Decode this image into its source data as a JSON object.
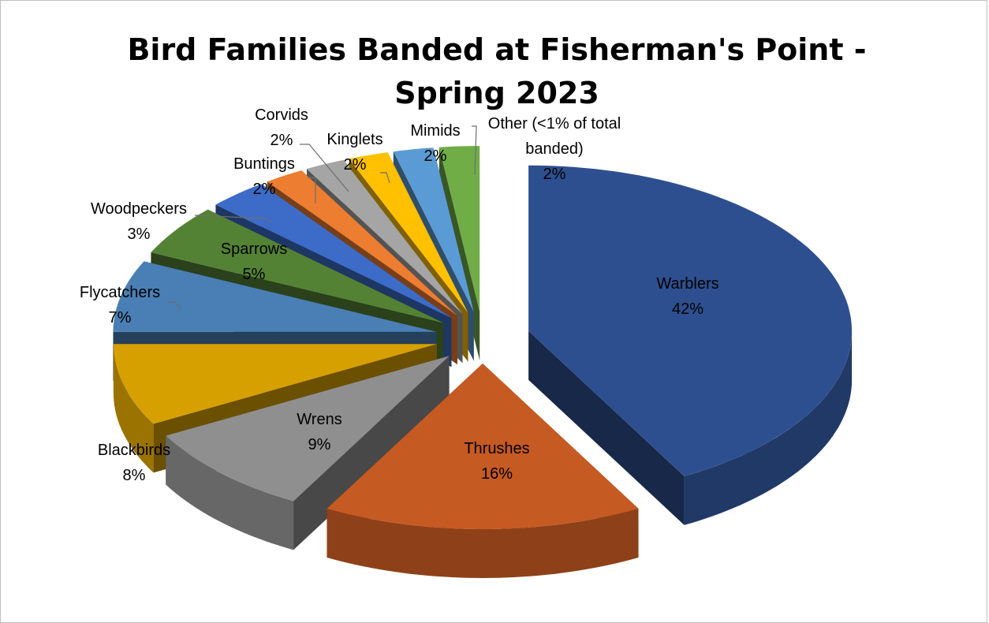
{
  "chart_data": {
    "type": "pie",
    "variant": "3d-exploded",
    "title_line1": "Bird Families Banded at Fisherman's Point -",
    "title_line2": "Spring 2023",
    "slices": [
      {
        "name": "Warblers",
        "value": 42,
        "label": "42%",
        "color": "#2e4f8f"
      },
      {
        "name": "Thrushes",
        "value": 16,
        "label": "16%",
        "color": "#c55a22"
      },
      {
        "name": "Wrens",
        "value": 9,
        "label": "9%",
        "color": "#8f8f8f"
      },
      {
        "name": "Blackbirds",
        "value": 8,
        "label": "8%",
        "color": "#d6a000"
      },
      {
        "name": "Flycatchers",
        "value": 7,
        "label": "7%",
        "color": "#4a7fb5"
      },
      {
        "name": "Sparrows",
        "value": 5,
        "label": "5%",
        "color": "#548235"
      },
      {
        "name": "Woodpeckers",
        "value": 3,
        "label": "3%",
        "color": "#3c6cc8"
      },
      {
        "name": "Buntings",
        "value": 2,
        "label": "2%",
        "color": "#ed7d31"
      },
      {
        "name": "Corvids",
        "value": 2,
        "label": "2%",
        "color": "#a5a5a5"
      },
      {
        "name": "Kinglets",
        "value": 2,
        "label": "2%",
        "color": "#ffc000"
      },
      {
        "name": "Mimids",
        "value": 2,
        "label": "2%",
        "color": "#5b9bd5"
      },
      {
        "name": "Other (<1% of total banded)",
        "name_line1": "Other (<1% of total",
        "name_line2": "banded)",
        "value": 2,
        "label": "2%",
        "color": "#70ad47"
      }
    ],
    "legend": "none",
    "data_labels": "category name and percentage"
  }
}
